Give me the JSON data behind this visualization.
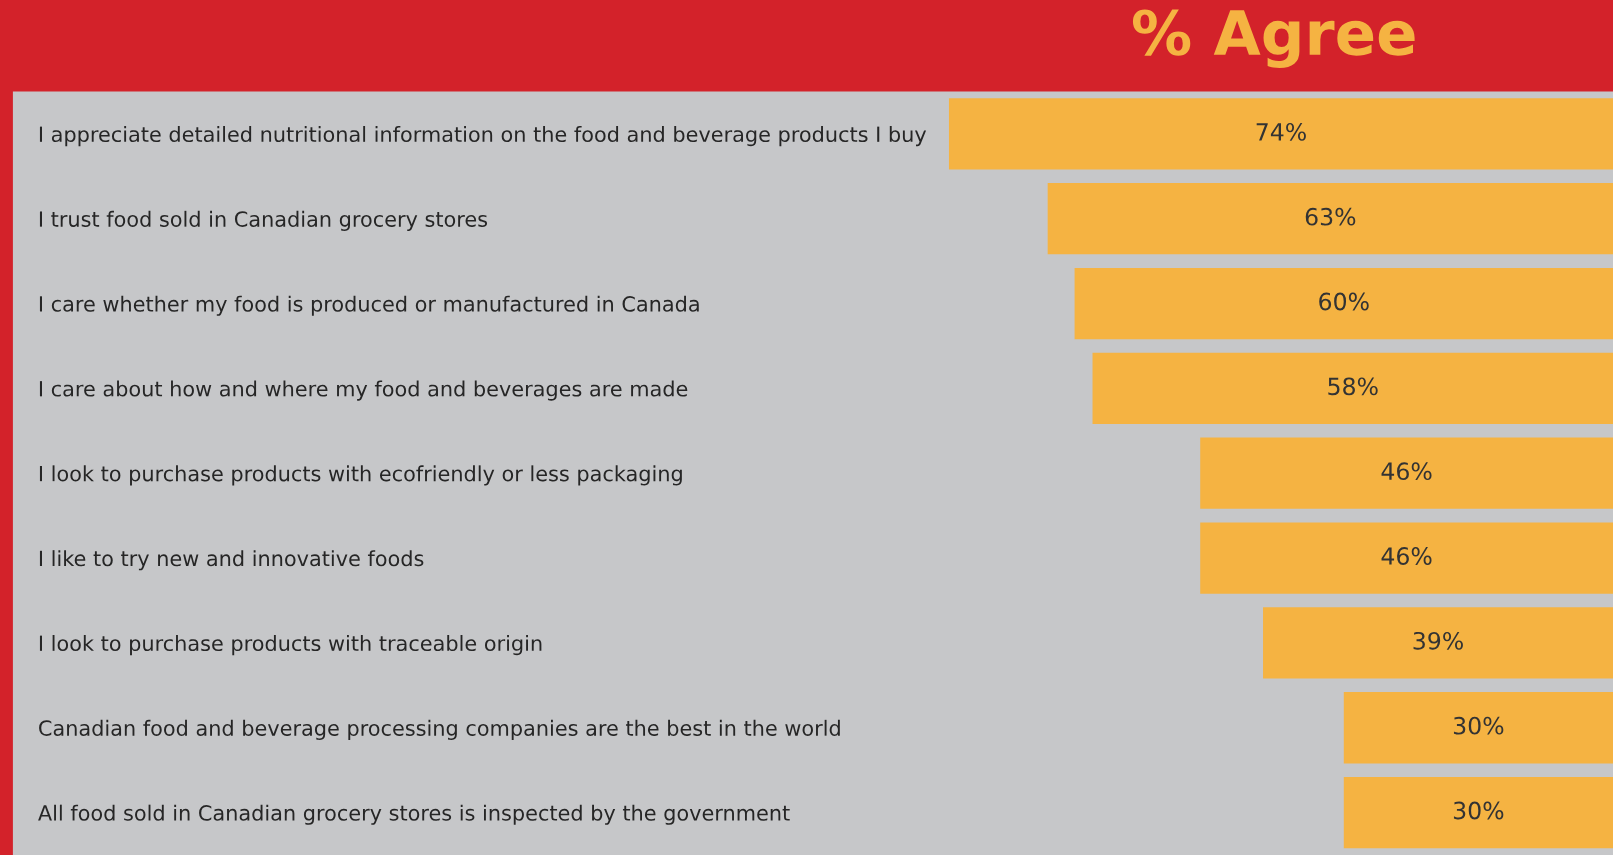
{
  "chart_data": {
    "type": "bar",
    "orientation": "horizontal",
    "title": "% Agree",
    "categories": [
      "I appreciate detailed nutritional information on the food and beverage products I buy",
      "I trust food sold in Canadian grocery stores",
      "I care whether my food is produced or manufactured in Canada",
      "I care about how and where my food and beverages are made",
      "I look to purchase products with ecofriendly or less packaging",
      "I like to try new and innovative foods",
      "I look to purchase products with traceable origin",
      "Canadian food and beverage processing companies are the best in the world",
      "All food sold in Canadian grocery stores is inspected by the government"
    ],
    "values": [
      74,
      63,
      60,
      58,
      46,
      46,
      39,
      30,
      30
    ],
    "value_labels": [
      "74%",
      "63%",
      "60%",
      "58%",
      "46%",
      "46%",
      "39%",
      "30%",
      "30%"
    ],
    "color": "#f5b342",
    "tick_labels": "y",
    "grid": false,
    "legend": false
  }
}
